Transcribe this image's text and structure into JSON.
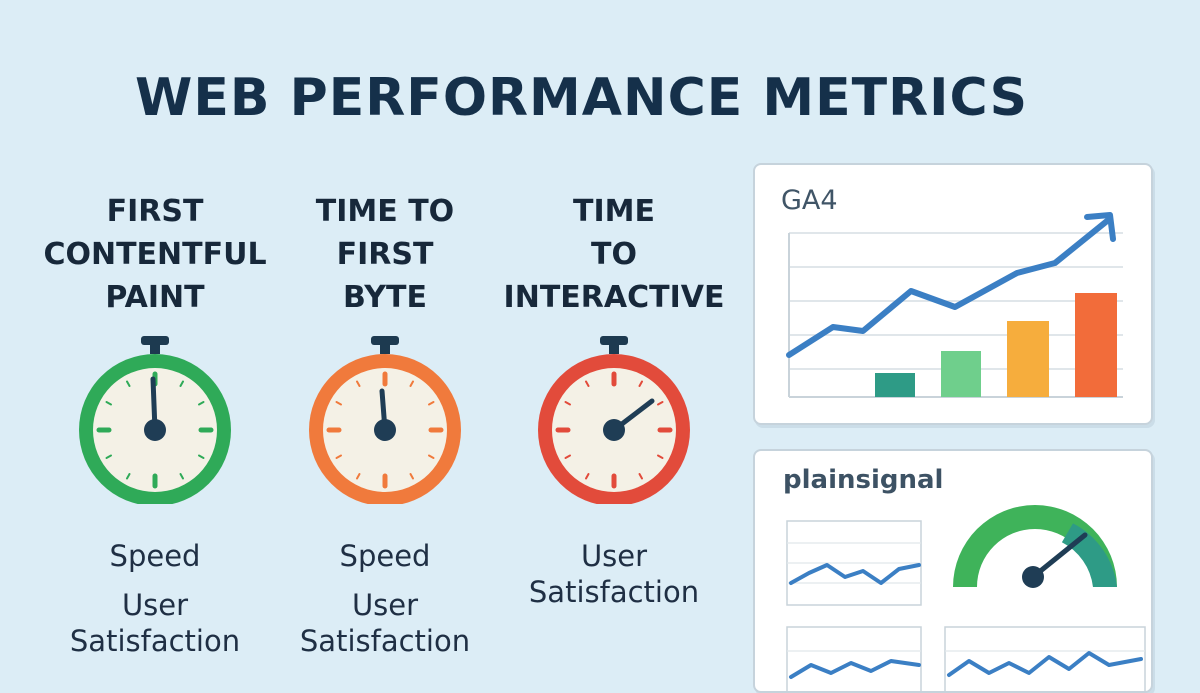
{
  "title": "WEB PERFORMANCE METRICS",
  "metrics": [
    {
      "title": "FIRST\nCONTENTFUL\nPAINT",
      "tags": [
        "Speed",
        "User\nSatisfaction"
      ],
      "ring_color": "#2faa58",
      "status": "good"
    },
    {
      "title": "TIME TO\nFIRST\nBYTE",
      "tags": [
        "Speed",
        "User\nSatisfaction"
      ],
      "ring_color": "#f07a3c",
      "status": "needs improvement"
    },
    {
      "title": "TIME\nTO\nINTERACTIVE",
      "tags": [
        "User\nSatisfaction"
      ],
      "ring_color": "#e24b3b",
      "status": "poor"
    }
  ],
  "panels": {
    "ga4": {
      "label": "GA4",
      "trend_icon": "upward-trend-arrow",
      "bar_colors": [
        "#2e9b86",
        "#6fcf8c",
        "#f6ad3d",
        "#f26c3a"
      ]
    },
    "plainsignal": {
      "label": "plainsignal",
      "gauge_icon": "speedometer-gauge",
      "gauge_colors": [
        "#3fb35a",
        "#2e9b86"
      ]
    }
  },
  "colors": {
    "background": "#dcedf6",
    "title": "#15304a",
    "line": "#3b7fc4",
    "needle": "#1f3d55"
  }
}
